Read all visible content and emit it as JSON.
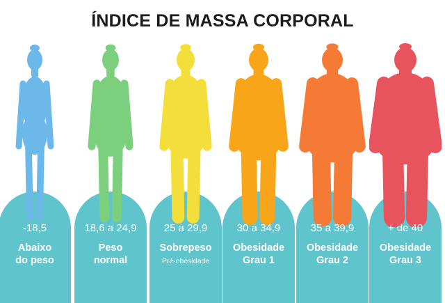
{
  "title": "ÍNDICE DE MASSA CORPORAL",
  "categories": [
    {
      "range": "-18,5",
      "line1": "Abaixo",
      "line2": "do peso",
      "subtitle": "",
      "color": "#6cb8e8",
      "fill": 0.0
    },
    {
      "range": "18,6 a 24,9",
      "line1": "Peso",
      "line2": "normal",
      "subtitle": "",
      "color": "#7ccf7c",
      "fill": 0.2
    },
    {
      "range": "25 a 29,9",
      "line1": "Sobrepeso",
      "line2": "",
      "subtitle": "Pré-obesidade",
      "color": "#f4de3a",
      "fill": 0.4
    },
    {
      "range": "30 a 34,9",
      "line1": "Obesidade",
      "line2": "Grau 1",
      "subtitle": "",
      "color": "#f8a51a",
      "fill": 0.6
    },
    {
      "range": "35 a 39,9",
      "line1": "Obesidade",
      "line2": "Grau 2",
      "subtitle": "",
      "color": "#f47a35",
      "fill": 0.8
    },
    {
      "range": "+ de 40",
      "line1": "Obesidade",
      "line2": "Grau 3",
      "subtitle": "",
      "color": "#e8545d",
      "fill": 1.0
    }
  ]
}
